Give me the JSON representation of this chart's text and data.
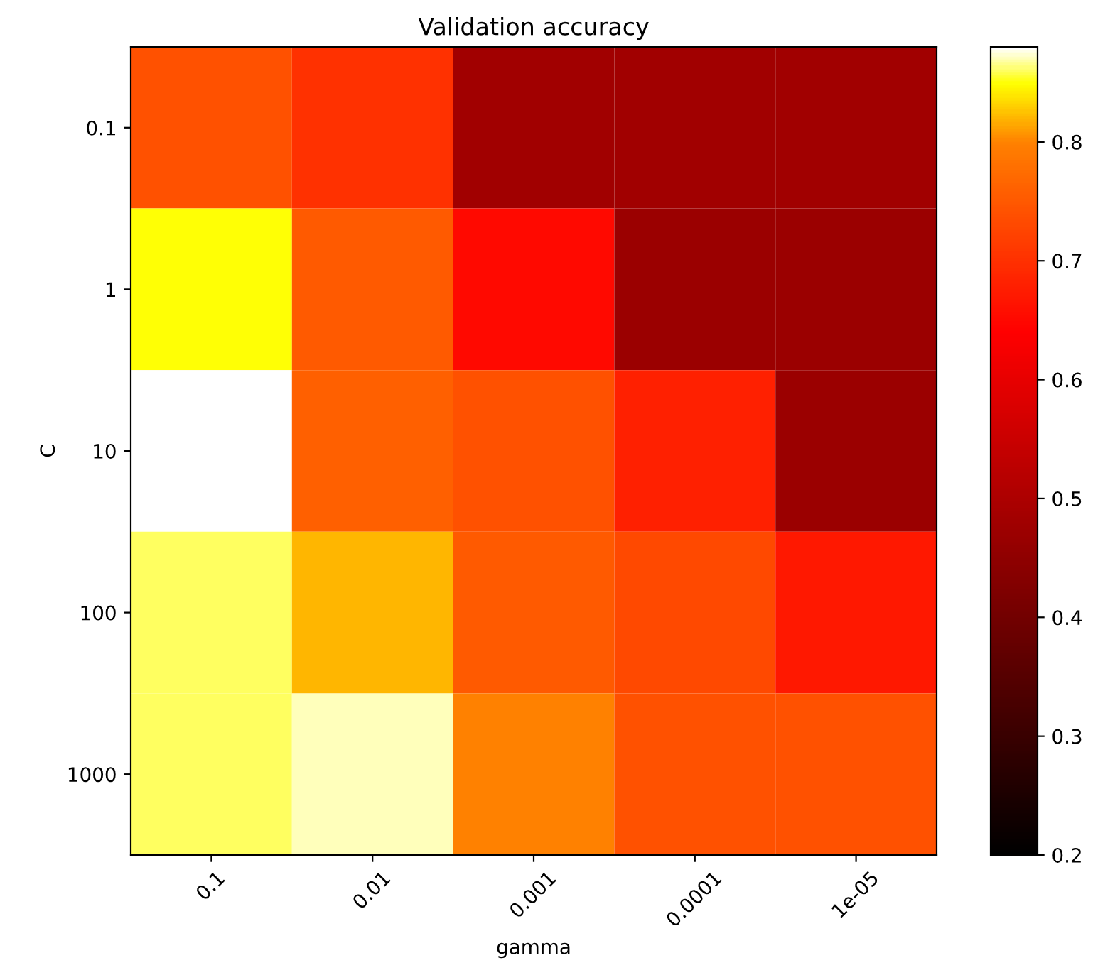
{
  "chart_data": {
    "type": "heatmap",
    "title": "Validation accuracy",
    "xlabel": "gamma",
    "ylabel": "C",
    "categories": [
      "0.1",
      "0.01",
      "0.001",
      "0.0001",
      "1e-05"
    ],
    "y_categories": [
      "0.1",
      "1",
      "10",
      "100",
      "1000"
    ],
    "cells": [
      [
        0.74,
        0.7,
        0.48,
        0.48,
        0.48
      ],
      [
        0.85,
        0.75,
        0.65,
        0.47,
        0.47
      ],
      [
        0.88,
        0.76,
        0.74,
        0.68,
        0.47
      ],
      [
        0.86,
        0.82,
        0.75,
        0.73,
        0.67
      ],
      [
        0.86,
        0.87,
        0.8,
        0.74,
        0.74
      ]
    ],
    "clim": [
      0.2,
      0.88
    ],
    "cticks": [
      0.2,
      0.3,
      0.4,
      0.5,
      0.6,
      0.7,
      0.8
    ]
  }
}
